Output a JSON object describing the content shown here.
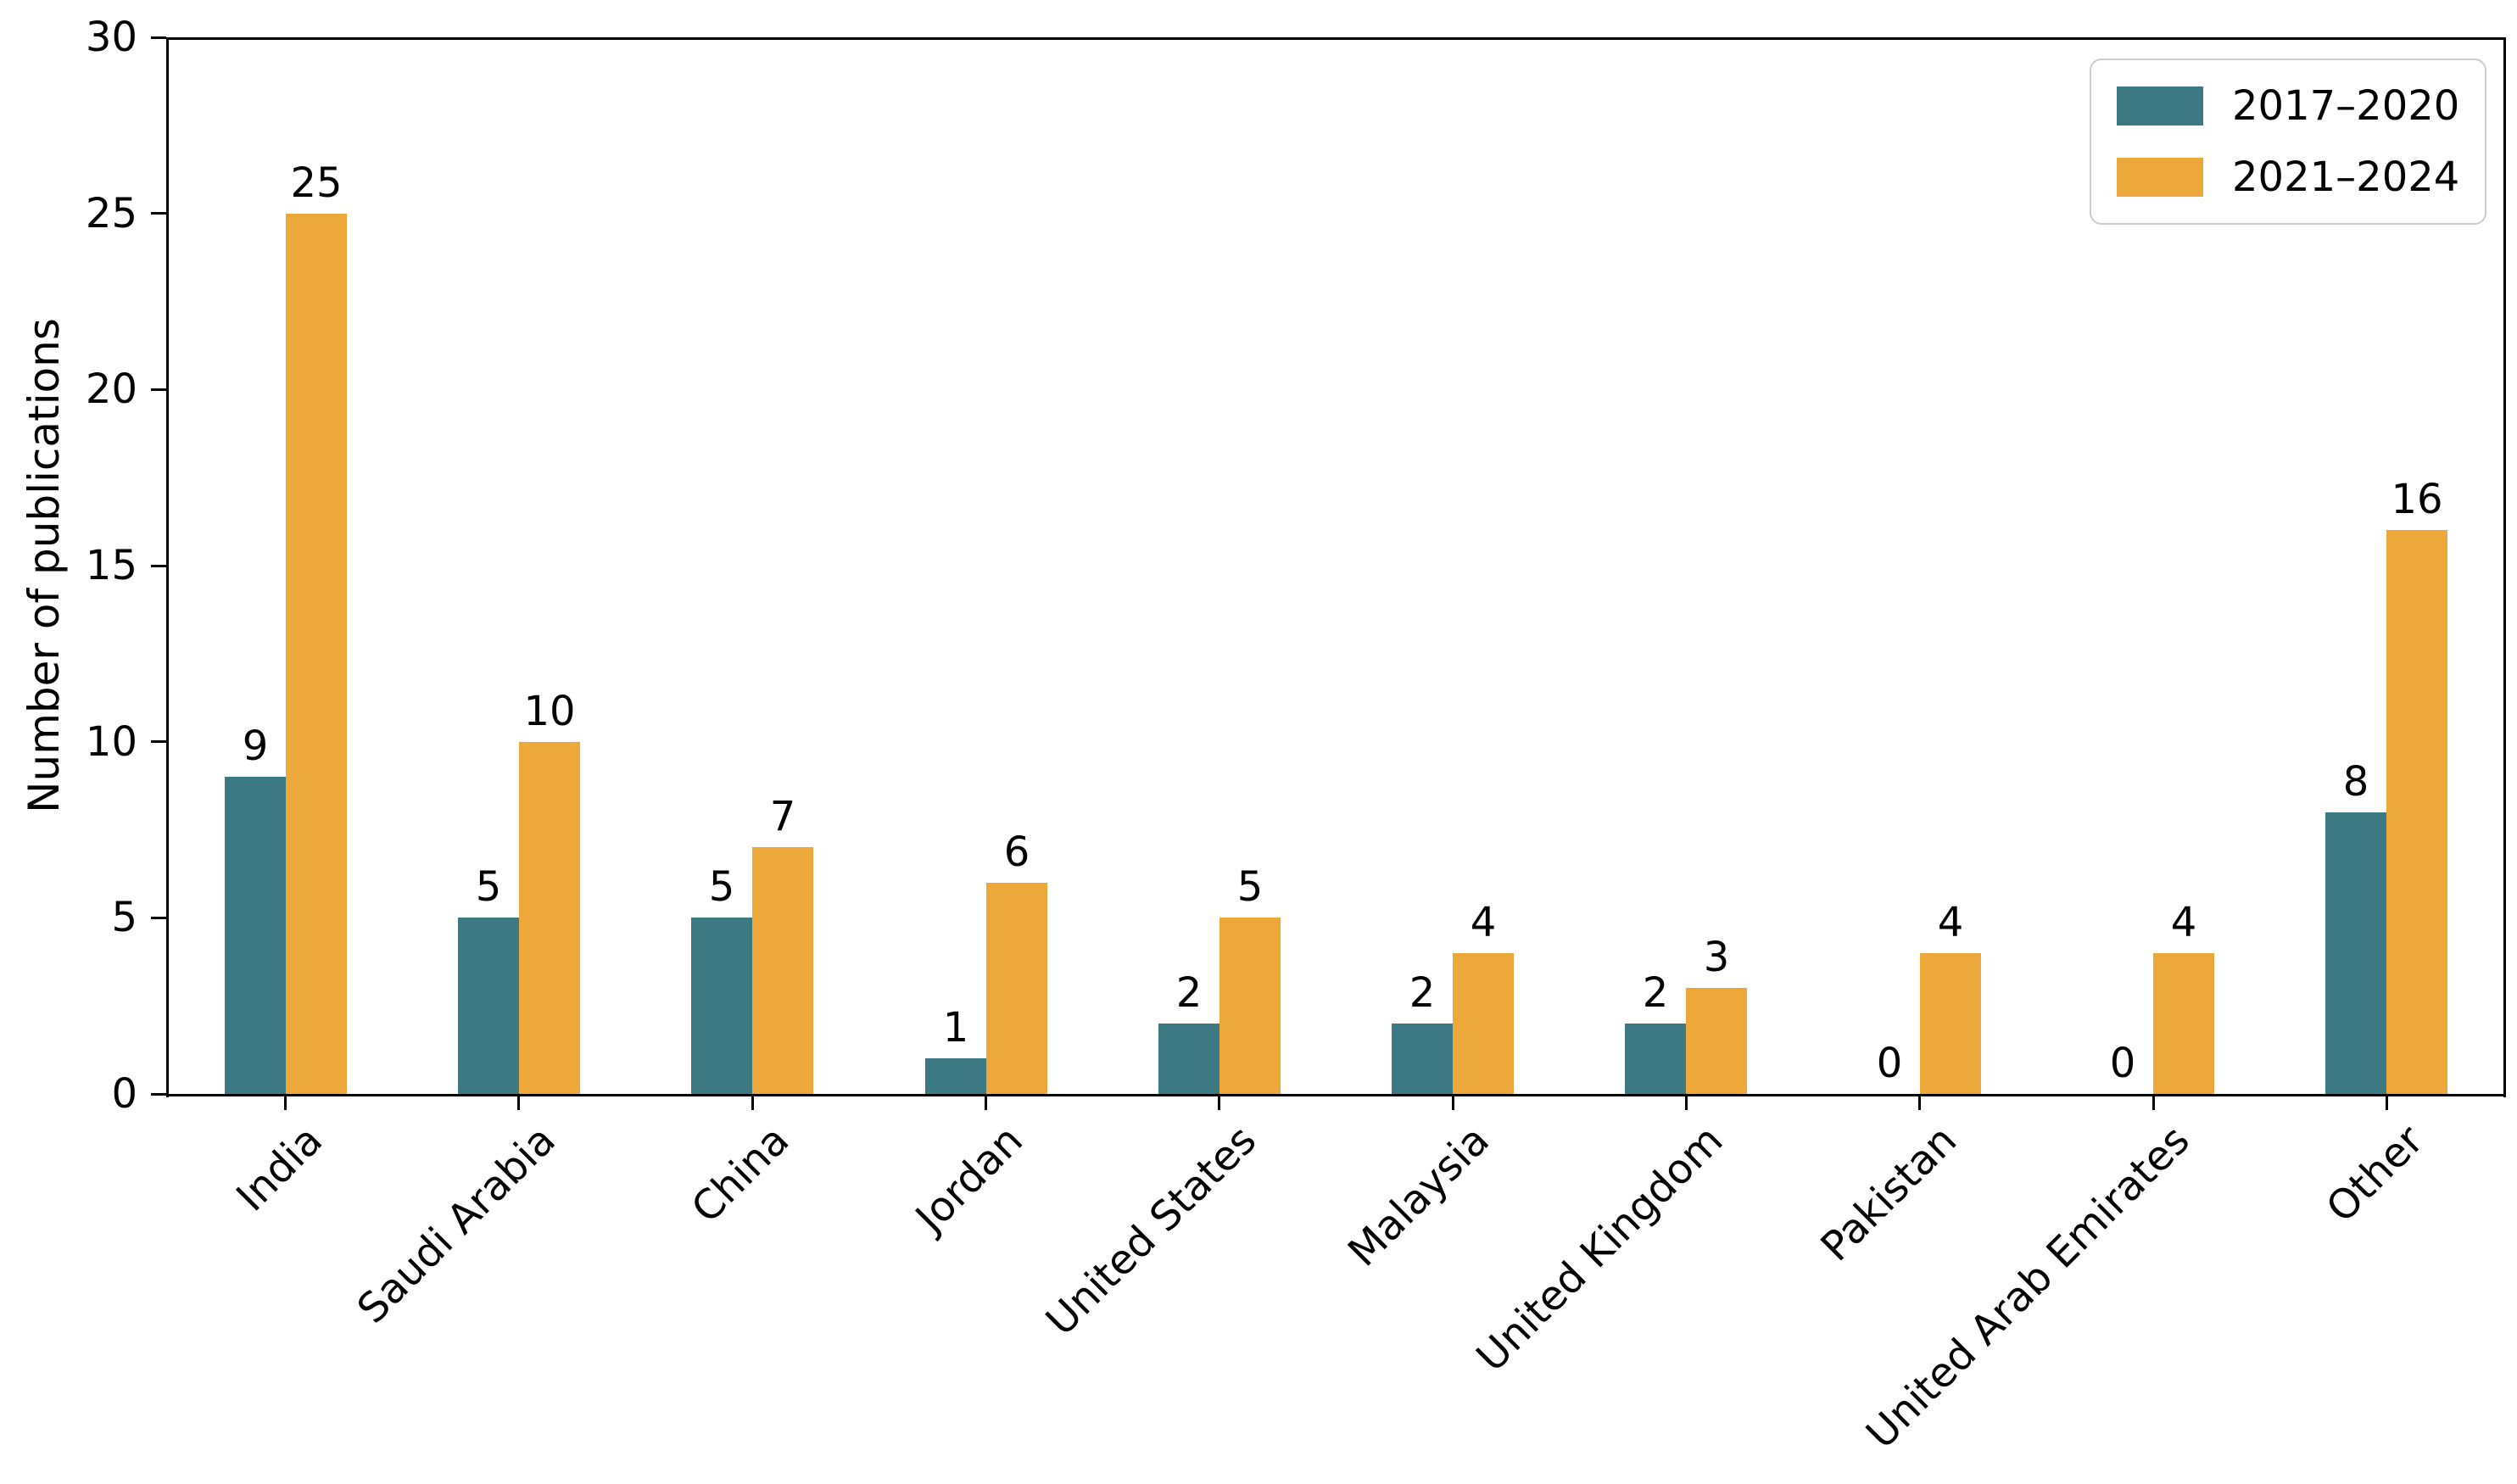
{
  "chart_data": {
    "type": "bar",
    "title": "",
    "xlabel": "",
    "ylabel": "Number of publications",
    "ylim": [
      0,
      30
    ],
    "yticks": [
      0,
      5,
      10,
      15,
      20,
      25,
      30
    ],
    "grid": false,
    "legend_position": "upper right",
    "bar_value_labels": true,
    "categories": [
      "India",
      "Saudi Arabia",
      "China",
      "Jordan",
      "United States",
      "Malaysia",
      "United Kingdom",
      "Pakistan",
      "United Arab Emirates",
      "Other"
    ],
    "series": [
      {
        "name": "2017–2020",
        "color": "#3D7982",
        "values": [
          9,
          5,
          5,
          1,
          2,
          2,
          2,
          0,
          0,
          8
        ]
      },
      {
        "name": "2021–2024",
        "color": "#EDA83B",
        "values": [
          25,
          10,
          7,
          6,
          5,
          4,
          3,
          4,
          4,
          16
        ]
      }
    ]
  },
  "colors": {
    "series_2017_2020": "#3D7982",
    "series_2021_2024": "#EDA83B",
    "axis": "#000000",
    "text": "#000000",
    "legend_border": "#cccccc",
    "background": "#ffffff"
  }
}
